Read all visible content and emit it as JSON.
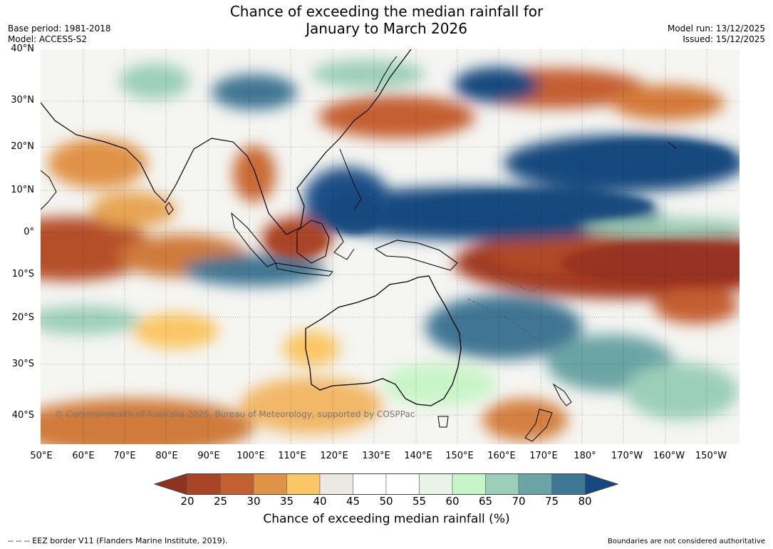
{
  "header": {
    "title_line1": "Chance of exceeding the median rainfall for",
    "title_line2": "January to March 2026",
    "base_period": "Base period: 1981-2018",
    "model": "Model: ACCESS-S2",
    "model_run": "Model run: 13/12/2025",
    "issued": "Issued: 15/12/2025"
  },
  "map": {
    "copyright": "© Commonwealth of Australia 2025, Bureau of Meteorology, supported by COSPPac",
    "lat_labels": [
      "40°N",
      "30°N",
      "20°N",
      "10°N",
      "0°",
      "10°S",
      "20°S",
      "30°S",
      "40°S"
    ],
    "lon_labels": [
      "50°E",
      "60°E",
      "70°E",
      "80°E",
      "90°E",
      "100°E",
      "110°E",
      "120°E",
      "130°E",
      "140°E",
      "150°E",
      "160°E",
      "170°E",
      "180°",
      "170°W",
      "160°W",
      "150°W"
    ]
  },
  "colorbar": {
    "title": "Chance of exceeding median rainfall (%)",
    "ticks": [
      "20",
      "25",
      "30",
      "35",
      "40",
      "45",
      "50",
      "55",
      "60",
      "65",
      "70",
      "75",
      "80"
    ],
    "colors": [
      "#8e3320",
      "#a94526",
      "#c45f32",
      "#e09347",
      "#fbc665",
      "#ece9e4",
      "#ffffff",
      "#ffffff",
      "#e8f5e6",
      "#c8f5c8",
      "#9ccfb9",
      "#6ba4a4",
      "#3f7693",
      "#15487e"
    ]
  },
  "footer": {
    "eez_note": "--  --  -- EEZ border V11 (Flanders Marine Institute, 2019).",
    "disclaimer": "Boundaries are not considered authoritative"
  }
}
